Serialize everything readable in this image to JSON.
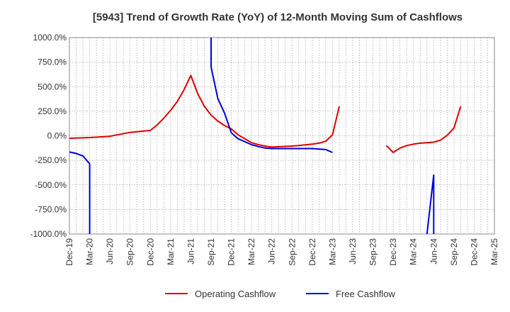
{
  "chart_data": {
    "type": "line",
    "title": "[5943]  Trend of Growth Rate (YoY) of 12-Month Moving Sum of Cashflows",
    "xlabel": "",
    "ylabel": "",
    "ylim": [
      -1000,
      1000
    ],
    "yticks": [
      1000,
      750,
      500,
      250,
      0,
      -250,
      -500,
      -750,
      -1000
    ],
    "ytick_labels": [
      "1000.0%",
      "750.0%",
      "500.0%",
      "250.0%",
      "0.0%",
      "-250.0%",
      "-500.0%",
      "-750.0%",
      "-1000.0%"
    ],
    "xtick_labels": [
      "Dec-19",
      "Mar-20",
      "Jun-20",
      "Sep-20",
      "Dec-20",
      "Mar-21",
      "Jun-21",
      "Sep-21",
      "Dec-21",
      "Mar-22",
      "Jun-22",
      "Sep-22",
      "Dec-22",
      "Mar-23",
      "Jun-23",
      "Sep-23",
      "Dec-23",
      "Mar-24",
      "Jun-24",
      "Sep-24",
      "Dec-24",
      "Mar-25"
    ],
    "grid": true,
    "legend_position": "bottom",
    "series": [
      {
        "name": "Operating Cashflow",
        "color": "#e00000",
        "points": [
          [
            "Dec-19",
            -25
          ],
          [
            "Mar-20",
            -18
          ],
          [
            "Jun-20",
            -5
          ],
          [
            "Sep-20",
            35
          ],
          [
            "Dec-20",
            55
          ],
          [
            "Jan-21",
            110
          ],
          [
            "Feb-21",
            180
          ],
          [
            "Mar-21",
            260
          ],
          [
            "Apr-21",
            350
          ],
          [
            "May-21",
            470
          ],
          [
            "Jun-21",
            615
          ],
          [
            "Jul-21",
            430
          ],
          [
            "Aug-21",
            300
          ],
          [
            "Sep-21",
            210
          ],
          [
            "Oct-21",
            150
          ],
          [
            "Nov-21",
            105
          ],
          [
            "Dec-21",
            70
          ],
          [
            "Jan-22",
            10
          ],
          [
            "Feb-22",
            -30
          ],
          [
            "Mar-22",
            -70
          ],
          [
            "Apr-22",
            -90
          ],
          [
            "May-22",
            -105
          ],
          [
            "Jun-22",
            -115
          ],
          [
            "Sep-22",
            -105
          ],
          [
            "Oct-22",
            -100
          ],
          [
            "Nov-22",
            -92
          ],
          [
            "Dec-22",
            -85
          ],
          [
            "Jan-23",
            -75
          ],
          [
            "Feb-23",
            -55
          ],
          [
            "Mar-23",
            10
          ],
          [
            "Apr-23",
            300
          ],
          null,
          [
            "Nov-23",
            -100
          ],
          [
            "Dec-23",
            -170
          ],
          [
            "Jan-24",
            -125
          ],
          [
            "Feb-24",
            -100
          ],
          [
            "Mar-24",
            -85
          ],
          [
            "Apr-24",
            -75
          ],
          [
            "May-24",
            -70
          ],
          [
            "Jun-24",
            -65
          ],
          [
            "Jul-24",
            -45
          ],
          [
            "Aug-24",
            5
          ],
          [
            "Sep-24",
            80
          ],
          [
            "Oct-24",
            300
          ]
        ]
      },
      {
        "name": "Free Cashflow",
        "color": "#0000dd",
        "points": [
          [
            "Dec-19",
            -165
          ],
          [
            "Jan-20",
            -180
          ],
          [
            "Feb-20",
            -205
          ],
          [
            "Mar-20",
            -285
          ],
          [
            "Mar-20",
            -1000
          ],
          null,
          [
            "Sep-21",
            1000
          ],
          [
            "Sep-21",
            700
          ],
          [
            "Oct-21",
            380
          ],
          [
            "Nov-21",
            230
          ],
          [
            "Dec-21",
            30
          ],
          [
            "Jan-22",
            -30
          ],
          [
            "Feb-22",
            -60
          ],
          [
            "Mar-22",
            -90
          ],
          [
            "Apr-22",
            -110
          ],
          [
            "May-22",
            -125
          ],
          [
            "Jun-22",
            -130
          ],
          [
            "Jul-22",
            -130
          ],
          [
            "Aug-22",
            -130
          ],
          [
            "Sep-22",
            -130
          ],
          [
            "Oct-22",
            -130
          ],
          [
            "Nov-22",
            -130
          ],
          [
            "Dec-22",
            -130
          ],
          [
            "Jan-23",
            -135
          ],
          [
            "Feb-23",
            -140
          ],
          [
            "Mar-23",
            -170
          ],
          null,
          [
            "May-24",
            -1000
          ],
          [
            "Jun-24",
            -400
          ],
          [
            "Jun-24",
            -1000
          ]
        ]
      }
    ]
  }
}
